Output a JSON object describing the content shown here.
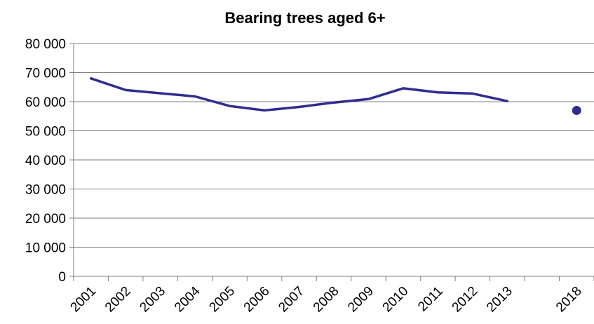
{
  "chart_data": {
    "type": "line",
    "title": "Bearing trees aged 6+",
    "xlabel": "",
    "ylabel": "",
    "categories": [
      "2001",
      "2002",
      "2003",
      "2004",
      "2005",
      "2006",
      "2007",
      "2008",
      "2009",
      "2010",
      "2011",
      "2012",
      "2013",
      "",
      "2018"
    ],
    "x_tick_labels": [
      "2001",
      "2002",
      "2003",
      "2004",
      "2005",
      "2006",
      "2007",
      "2008",
      "2009",
      "2010",
      "2011",
      "2012",
      "2013",
      "2018"
    ],
    "series": [
      {
        "values": [
          68000,
          64000,
          62900,
          61800,
          58500,
          57000,
          58200,
          59700,
          60900,
          64600,
          63200,
          62800,
          60200,
          null,
          null
        ]
      },
      {
        "values": [
          null,
          null,
          null,
          null,
          null,
          null,
          null,
          null,
          null,
          null,
          null,
          null,
          null,
          null,
          57000
        ]
      }
    ],
    "y_tick_labels": [
      "0",
      "10 000",
      "20 000",
      "30 000",
      "40 000",
      "50 000",
      "60 000",
      "70 000",
      "80 000"
    ],
    "ylim": [
      0,
      80000
    ],
    "y_tick_step": 10000,
    "grid": true,
    "legend": "none",
    "colors": {
      "series": "#2e2e8f",
      "grid": "#7f7f7f",
      "axis": "#7f7f7f",
      "text": "#000000"
    }
  }
}
